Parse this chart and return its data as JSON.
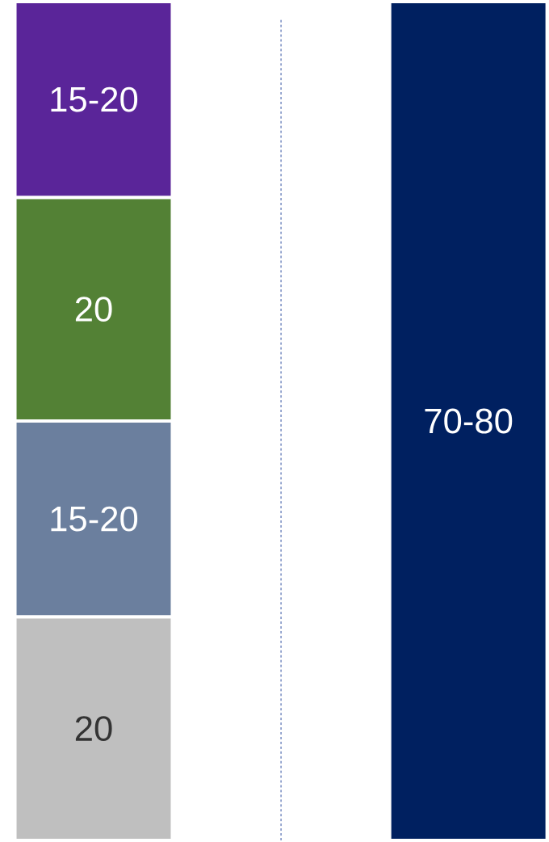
{
  "chart_data": {
    "type": "bar",
    "stacked": true,
    "categories": [
      null,
      null
    ],
    "series": [
      {
        "color": "#bfbfbf",
        "values": [
          20,
          null
        ],
        "value_labels": [
          "20",
          null
        ]
      },
      {
        "color": "#6b7f9e",
        "values": [
          17.5,
          null
        ],
        "value_labels": [
          "15-20",
          null
        ]
      },
      {
        "color": "#538135",
        "values": [
          20,
          null
        ],
        "value_labels": [
          "20",
          null
        ]
      },
      {
        "color": "#5a2599",
        "values": [
          17.5,
          null
        ],
        "value_labels": [
          "15-20",
          null
        ]
      },
      {
        "color": "#002060",
        "values": [
          null,
          75
        ],
        "value_labels": [
          null,
          "70-80"
        ]
      }
    ]
  }
}
